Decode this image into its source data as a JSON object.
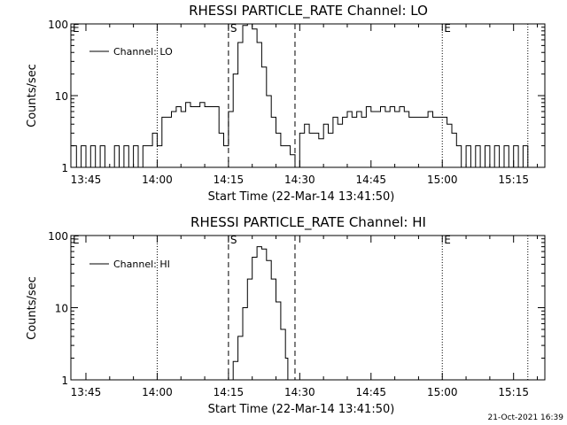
{
  "chart_data": [
    {
      "type": "line",
      "title": "RHESSI PARTICLE_RATE Channel: LO",
      "xlabel": "Start Time (22-Mar-14 13:41:50)",
      "ylabel": "Counts/sec",
      "yscale": "log",
      "ylim": [
        1,
        100
      ],
      "xlim": [
        "13:41:50",
        "15:21:35"
      ],
      "x_tick_labels": [
        "13:45",
        "14:00",
        "14:15",
        "14:30",
        "14:45",
        "15:00",
        "15:15"
      ],
      "y_tick_labels": [
        "1",
        "10",
        "100"
      ],
      "legend": {
        "placement": "top-left",
        "entries": [
          "Channel: LO"
        ]
      },
      "markers": [
        {
          "label": "E",
          "time": "13:41:50",
          "style": "dotted"
        },
        {
          "label": "",
          "time": "14:00:00",
          "style": "dotted"
        },
        {
          "label": "S",
          "time": "14:15:00",
          "style": "dashed"
        },
        {
          "label": "",
          "time": "14:29:00",
          "style": "dashed"
        },
        {
          "label": "E",
          "time": "15:00:00",
          "style": "dotted"
        },
        {
          "label": "",
          "time": "15:18:00",
          "style": "dotted"
        }
      ],
      "series": [
        {
          "name": "Channel: LO",
          "x": [
            "13:42",
            "13:43",
            "13:44",
            "13:45",
            "13:46",
            "13:47",
            "13:48",
            "13:49",
            "13:50",
            "13:51",
            "13:52",
            "13:53",
            "13:54",
            "13:55",
            "13:56",
            "13:57",
            "13:58",
            "13:59",
            "14:00",
            "14:01",
            "14:02",
            "14:03",
            "14:04",
            "14:05",
            "14:06",
            "14:07",
            "14:08",
            "14:09",
            "14:10",
            "14:11",
            "14:12",
            "14:13",
            "14:14",
            "14:15",
            "14:16",
            "14:17",
            "14:18",
            "14:19",
            "14:20",
            "14:21",
            "14:22",
            "14:23",
            "14:24",
            "14:25",
            "14:26",
            "14:27",
            "14:28",
            "14:29",
            "14:30",
            "14:31",
            "14:32",
            "14:33",
            "14:34",
            "14:35",
            "14:36",
            "14:37",
            "14:38",
            "14:39",
            "14:40",
            "14:41",
            "14:42",
            "14:43",
            "14:44",
            "14:45",
            "14:46",
            "14:47",
            "14:48",
            "14:49",
            "14:50",
            "14:51",
            "14:52",
            "14:53",
            "14:54",
            "14:55",
            "14:56",
            "14:57",
            "14:58",
            "14:59",
            "15:00",
            "15:01",
            "15:02",
            "15:03",
            "15:04",
            "15:05",
            "15:06",
            "15:07",
            "15:08",
            "15:09",
            "15:10",
            "15:11",
            "15:12",
            "15:13",
            "15:14",
            "15:15",
            "15:16",
            "15:17",
            "15:18"
          ],
          "y": [
            2,
            1,
            2,
            1,
            2,
            1,
            2,
            1,
            1,
            2,
            1,
            2,
            1,
            2,
            1,
            2,
            2,
            3,
            2,
            5,
            5,
            6,
            7,
            6,
            8,
            7,
            7,
            8,
            7,
            7,
            7,
            3,
            2,
            6,
            20,
            55,
            95,
            100,
            85,
            55,
            25,
            10,
            5,
            3,
            2,
            2,
            1.5,
            1,
            3,
            4,
            3,
            3,
            2.5,
            4,
            3,
            5,
            4,
            5,
            6,
            5,
            6,
            5,
            7,
            6,
            6,
            7,
            6,
            7,
            6,
            7,
            6,
            5,
            5,
            5,
            5,
            6,
            5,
            5,
            5,
            4,
            3,
            2,
            1,
            2,
            1,
            2,
            1,
            2,
            1,
            2,
            1,
            2,
            1,
            2,
            1,
            2,
            1
          ]
        }
      ]
    },
    {
      "type": "line",
      "title": "RHESSI PARTICLE_RATE Channel: HI",
      "xlabel": "Start Time (22-Mar-14 13:41:50)",
      "ylabel": "Counts/sec",
      "yscale": "log",
      "ylim": [
        1,
        100
      ],
      "xlim": [
        "13:41:50",
        "15:21:35"
      ],
      "x_tick_labels": [
        "13:45",
        "14:00",
        "14:15",
        "14:30",
        "14:45",
        "15:00",
        "15:15"
      ],
      "y_tick_labels": [
        "1",
        "10",
        "100"
      ],
      "legend": {
        "placement": "top-left",
        "entries": [
          "Channel: HI"
        ]
      },
      "markers": [
        {
          "label": "E",
          "time": "13:41:50",
          "style": "dotted"
        },
        {
          "label": "",
          "time": "14:00:00",
          "style": "dotted"
        },
        {
          "label": "S",
          "time": "14:15:00",
          "style": "dashed"
        },
        {
          "label": "",
          "time": "14:29:00",
          "style": "dashed"
        },
        {
          "label": "E",
          "time": "15:00:00",
          "style": "dotted"
        },
        {
          "label": "",
          "time": "15:18:00",
          "style": "dotted"
        }
      ],
      "series": [
        {
          "name": "Channel: HI",
          "x": [
            "14:15:30",
            "14:16",
            "14:17",
            "14:18",
            "14:19",
            "14:20",
            "14:21",
            "14:22",
            "14:23",
            "14:24",
            "14:25",
            "14:26",
            "14:27",
            "14:27:30"
          ],
          "y": [
            1,
            1.8,
            4,
            10,
            25,
            50,
            70,
            65,
            45,
            25,
            12,
            5,
            2,
            1
          ]
        }
      ]
    }
  ],
  "footer": {
    "date_stamp": "21-Oct-2021 16:39"
  }
}
